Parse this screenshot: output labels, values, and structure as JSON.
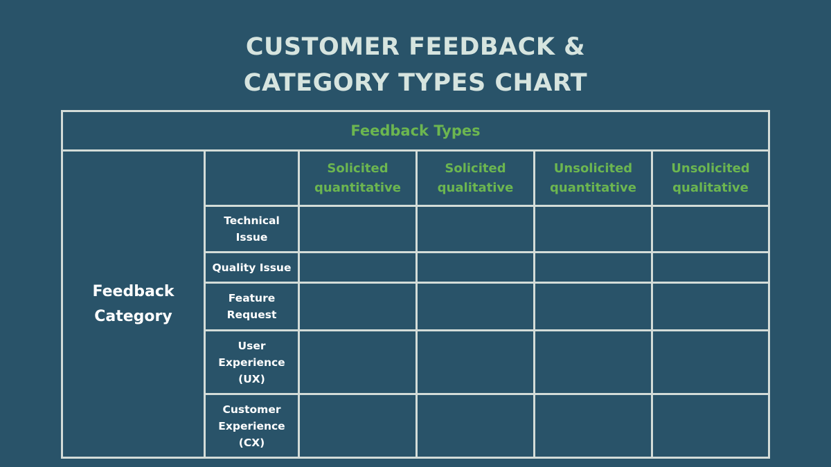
{
  "title": {
    "line1": "CUSTOMER FEEDBACK &",
    "line2": "CATEGORY TYPES CHART"
  },
  "table": {
    "column_group_header": "Feedback Types",
    "row_group_header": "Feedback Category",
    "columns": [
      {
        "line1": "Solicited",
        "line2": "quantitative"
      },
      {
        "line1": "Solicited",
        "line2": "qualitative"
      },
      {
        "line1": "Unsolicited",
        "line2": "quantitative"
      },
      {
        "line1": "Unsolicited",
        "line2": "qualitative"
      }
    ],
    "rows": [
      {
        "lines": [
          "Technical",
          "Issue"
        ]
      },
      {
        "lines": [
          "Quality Issue"
        ]
      },
      {
        "lines": [
          "Feature",
          "Request"
        ]
      },
      {
        "lines": [
          "User",
          "Experience",
          "(UX)"
        ]
      },
      {
        "lines": [
          "Customer",
          "Experience",
          "(CX)"
        ]
      }
    ],
    "cells": [
      [
        "",
        "",
        "",
        ""
      ],
      [
        "",
        "",
        "",
        ""
      ],
      [
        "",
        "",
        "",
        ""
      ],
      [
        "",
        "",
        "",
        ""
      ],
      [
        "",
        "",
        "",
        ""
      ]
    ]
  },
  "colors": {
    "background": "#295369",
    "title": "#d6e4df",
    "accent_green": "#6cb650",
    "grid_lines": "#d3dcd8",
    "label_text": "#ffffff"
  }
}
